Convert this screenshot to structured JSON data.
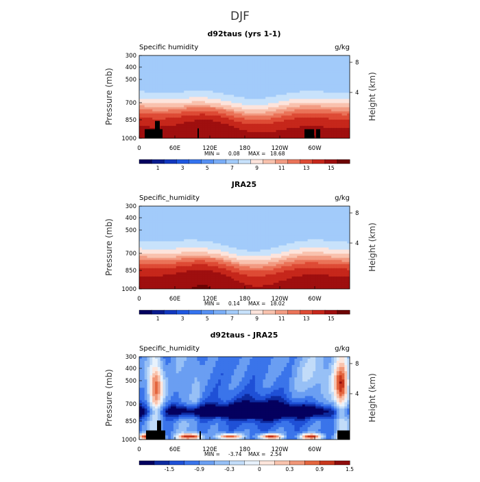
{
  "page": {
    "title": "DJF"
  },
  "colors": {
    "abs_scale": [
      "#04005f",
      "#0a1b8f",
      "#1238bf",
      "#1f57e0",
      "#3473ef",
      "#5690f3",
      "#7aaef7",
      "#a2cbfa",
      "#c8e2fb",
      "#fde4dc",
      "#f9c2ae",
      "#f29b82",
      "#ea7358",
      "#de4b35",
      "#c6271b",
      "#9f0f0f",
      "#6e0505"
    ],
    "diff_scale": [
      "#04005f",
      "#0d2a9f",
      "#1f50d6",
      "#3a74ea",
      "#6a9ef2",
      "#97c0f6",
      "#c2dcf9",
      "#e8f2fc",
      "#fde6dc",
      "#f9c3ad",
      "#f09677",
      "#e3653e",
      "#c8371d",
      "#8f0d0d"
    ],
    "terrain": "#000000"
  },
  "chart_data": [
    {
      "type": "heatmap",
      "title": "d92taus (yrs 1-1)",
      "variable_label": "Specific humidity",
      "units": "g/kg",
      "ylabel": "Pressure (mb)",
      "y2label": "Height (km)",
      "yticks": [
        "300",
        "400",
        "500",
        "700",
        "850",
        "1000"
      ],
      "y2ticks": [
        "8",
        "4"
      ],
      "xticks": [
        "0",
        "60E",
        "120E",
        "180",
        "120W",
        "60W"
      ],
      "min_label": "MIN =",
      "min_value": "0.08",
      "max_label": "MAX =",
      "max_value": "18.68",
      "colorbar_labels": [
        "1",
        "3",
        "5",
        "7",
        "9",
        "11",
        "13",
        "15"
      ],
      "scale": "abs",
      "terrain": true
    },
    {
      "type": "heatmap",
      "title": "JRA25",
      "variable_label": "Specific_humidity",
      "units": "g/kg",
      "ylabel": "Pressure (mb)",
      "y2label": "Height (km)",
      "yticks": [
        "300",
        "400",
        "500",
        "700",
        "850",
        "1000"
      ],
      "y2ticks": [
        "8",
        "4"
      ],
      "xticks": [
        "0",
        "60E",
        "120E",
        "180",
        "120W",
        "60W"
      ],
      "min_label": "MIN =",
      "min_value": "0.14",
      "max_label": "MAX =",
      "max_value": "18.02",
      "colorbar_labels": [
        "1",
        "3",
        "5",
        "7",
        "9",
        "11",
        "13",
        "15"
      ],
      "scale": "abs",
      "terrain": false
    },
    {
      "type": "heatmap",
      "title": "d92taus - JRA25",
      "variable_label": "Specific_humidity",
      "units": "g/kg",
      "ylabel": "Pressure (mb)",
      "y2label": "Height (km)",
      "yticks": [
        "300",
        "400",
        "500",
        "700",
        "850",
        "1000"
      ],
      "y2ticks": [
        "8",
        "4"
      ],
      "xticks": [
        "0",
        "60E",
        "120E",
        "180",
        "120W",
        "60W"
      ],
      "min_label": "MIN =",
      "min_value": "-3.74",
      "max_label": "MAX =",
      "max_value": "2.54",
      "colorbar_labels": [
        "-1.5",
        "-0.9",
        "-0.3",
        "0",
        "0.3",
        "0.9",
        "1.5"
      ],
      "scale": "diff",
      "terrain": true
    }
  ]
}
